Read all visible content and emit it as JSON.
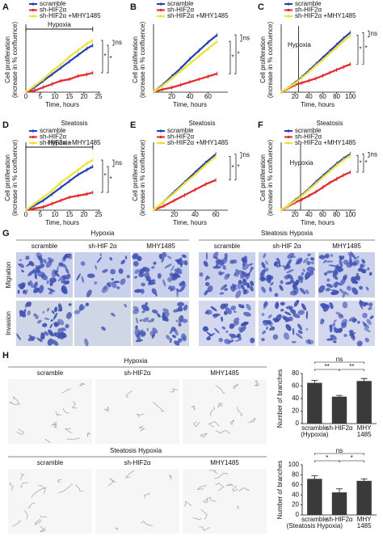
{
  "chart_data": [
    {
      "type": "line",
      "panel": "A",
      "annotation": {
        "text": "Hypoxia"
      },
      "xlabel": "Time, hours",
      "ylabel": [
        "Cell proliferation",
        "(increase in % confluence)"
      ],
      "x": [
        0,
        3,
        6,
        9,
        12,
        15,
        18,
        21,
        23
      ],
      "xlim": [
        0,
        25
      ],
      "xticks": [
        0,
        5,
        10,
        15,
        20,
        25
      ],
      "ylim": [
        0,
        40
      ],
      "series": [
        {
          "name": "scramble",
          "color": "#1f3fbf",
          "values": [
            0,
            3,
            7,
            11,
            15,
            19,
            23,
            27,
            29
          ]
        },
        {
          "name": "sh-HIF2α",
          "color": "#e8262a",
          "values": [
            0,
            1,
            3,
            5,
            7,
            8,
            10,
            11,
            12
          ]
        },
        {
          "name": "sh-HIF2α +MHY1485",
          "color": "#f2e22c",
          "values": [
            0,
            4,
            8,
            13,
            17,
            22,
            26,
            30,
            32
          ]
        }
      ],
      "significance": [
        "*",
        "*",
        "ns"
      ]
    },
    {
      "type": "line",
      "panel": "B",
      "xlabel": "Time, hours",
      "ylabel": [
        "Cell proliferation",
        "(increase in % confluence)"
      ],
      "x": [
        0,
        10,
        20,
        30,
        40,
        50,
        60,
        70
      ],
      "xlim": [
        0,
        80
      ],
      "xticks": [
        20,
        40,
        60
      ],
      "ylim": [
        0,
        70
      ],
      "series": [
        {
          "name": "scramble",
          "color": "#1f3fbf",
          "values": [
            0,
            8,
            17,
            26,
            36,
            45,
            54,
            62
          ]
        },
        {
          "name": "sh-HIF2α",
          "color": "#e8262a",
          "values": [
            0,
            3,
            5,
            8,
            11,
            14,
            17,
            20
          ]
        },
        {
          "name": "sh-HIF2α +MHY1485",
          "color": "#f2e22c",
          "values": [
            0,
            7,
            15,
            23,
            31,
            39,
            47,
            55
          ]
        }
      ],
      "significance": [
        "*",
        "*",
        "ns"
      ]
    },
    {
      "type": "line",
      "panel": "C",
      "annotation": {
        "text": "Hypoxia",
        "x": 25
      },
      "xlabel": "Time, hours",
      "ylabel": [
        "Cell proliferation",
        "(increase in % confluence)"
      ],
      "x": [
        0,
        10,
        20,
        30,
        40,
        50,
        60,
        70,
        80,
        90,
        100
      ],
      "xlim": [
        0,
        105
      ],
      "xticks": [
        20,
        40,
        60,
        80,
        100
      ],
      "ylim": [
        0,
        90
      ],
      "series": [
        {
          "name": "scramble",
          "color": "#1f3fbf",
          "values": [
            0,
            6,
            13,
            21,
            30,
            39,
            48,
            57,
            66,
            75,
            83
          ]
        },
        {
          "name": "sh-HIF2α",
          "color": "#e8262a",
          "values": [
            0,
            5,
            10,
            13,
            16,
            19,
            23,
            27,
            31,
            35,
            39
          ]
        },
        {
          "name": "sh-HIF2α +MHY1485",
          "color": "#f2e22c",
          "values": [
            0,
            6,
            12,
            20,
            28,
            37,
            45,
            54,
            62,
            71,
            79
          ]
        }
      ],
      "significance": [
        "*",
        "*",
        "ns"
      ]
    },
    {
      "type": "line",
      "panel": "D",
      "title": "Steatosis",
      "annotation": {
        "text": "Hypoxia"
      },
      "xlabel": "Time, hours",
      "ylabel": [
        "Cell proliferation",
        "(increase in % confluence)"
      ],
      "x": [
        0,
        3,
        6,
        9,
        12,
        15,
        18,
        21,
        23
      ],
      "xlim": [
        0,
        25
      ],
      "xticks": [
        0,
        5,
        10,
        15,
        20,
        25
      ],
      "ylim": [
        0,
        40
      ],
      "series": [
        {
          "name": "scramble",
          "color": "#1f3fbf",
          "values": [
            0,
            3,
            6,
            10,
            14,
            18,
            22,
            25,
            27
          ]
        },
        {
          "name": "sh-HIF2α",
          "color": "#e8262a",
          "values": [
            0,
            1,
            2,
            4,
            6,
            8,
            9,
            10,
            11
          ]
        },
        {
          "name": "sh-HIF2α +MHY1485",
          "color": "#f2e22c",
          "values": [
            0,
            4,
            8,
            12,
            17,
            21,
            25,
            29,
            31
          ]
        }
      ],
      "significance": [
        "*",
        "*",
        "ns"
      ]
    },
    {
      "type": "line",
      "panel": "E",
      "title": "Steatosis",
      "xlabel": "Time, hours",
      "ylabel": [
        "Cell proliferation",
        "(increase in % confluence)"
      ],
      "x": [
        0,
        10,
        20,
        30,
        40,
        50,
        60
      ],
      "xlim": [
        0,
        70
      ],
      "xticks": [
        20,
        40,
        60
      ],
      "ylim": [
        0,
        60
      ],
      "series": [
        {
          "name": "scramble",
          "color": "#1f3fbf",
          "values": [
            0,
            8,
            17,
            26,
            35,
            44,
            52
          ]
        },
        {
          "name": "sh-HIF2α",
          "color": "#e8262a",
          "values": [
            0,
            4,
            9,
            14,
            19,
            24,
            28
          ]
        },
        {
          "name": "sh-HIF2α +MHY1485",
          "color": "#f2e22c",
          "values": [
            0,
            8,
            16,
            25,
            33,
            42,
            50
          ]
        }
      ],
      "significance": [
        "*",
        "*",
        "ns"
      ]
    },
    {
      "type": "line",
      "panel": "F",
      "title": "Steatosis",
      "annotation": {
        "text": "Hypoxia",
        "x": 28
      },
      "xlabel": "Time, hours",
      "ylabel": [
        "Cell proliferation",
        "(increase in % confluence)"
      ],
      "x": [
        0,
        10,
        20,
        30,
        40,
        50,
        60,
        70,
        80,
        90,
        100
      ],
      "xlim": [
        0,
        105
      ],
      "xticks": [
        20,
        40,
        60,
        80,
        100
      ],
      "ylim": [
        0,
        85
      ],
      "series": [
        {
          "name": "scramble",
          "color": "#1f3fbf",
          "values": [
            0,
            6,
            13,
            20,
            28,
            37,
            45,
            53,
            61,
            68,
            74
          ]
        },
        {
          "name": "sh-HIF2α",
          "color": "#e8262a",
          "values": [
            0,
            5,
            10,
            14,
            19,
            24,
            30,
            36,
            41,
            46,
            50
          ]
        },
        {
          "name": "sh-HIF2α +MHY1485",
          "color": "#f2e22c",
          "values": [
            0,
            6,
            12,
            19,
            27,
            35,
            43,
            51,
            59,
            66,
            72
          ]
        }
      ],
      "significance": [
        "*",
        "*",
        "ns"
      ]
    },
    {
      "type": "bar",
      "ylabel": "Number of branches",
      "color": "#3a3a3a",
      "categories": [
        [
          "scramble",
          "(Hypoxia)"
        ],
        [
          "sh-HIF2α"
        ],
        [
          "MHY",
          "1485"
        ]
      ],
      "values": [
        65,
        43,
        68
      ],
      "errors": [
        4,
        2,
        4
      ],
      "ylim": [
        0,
        80
      ],
      "yticks": [
        0,
        20,
        40,
        60,
        80
      ],
      "significance": [
        "ns",
        "**",
        "**"
      ]
    },
    {
      "type": "bar",
      "ylabel": "Number of branches",
      "color": "#3a3a3a",
      "categories": [
        [
          "scramble",
          "(Steatosis Hypoxia)"
        ],
        [
          "sh-HIF2α"
        ],
        [
          "MHY",
          "1485"
        ]
      ],
      "values": [
        72,
        45,
        68
      ],
      "errors": [
        6,
        7,
        4
      ],
      "ylim": [
        0,
        100
      ],
      "yticks": [
        0,
        20,
        40,
        60,
        80,
        100
      ],
      "significance": [
        "ns",
        "*",
        "*"
      ]
    }
  ],
  "panel_g": {
    "panel": "G",
    "groups": [
      "Hypoxia",
      "Steatosis Hypoxia"
    ],
    "columns": [
      "scramble",
      "sh-HIF 2α",
      "MHY1485"
    ],
    "rows": [
      "Migration",
      "Invasion"
    ]
  },
  "panel_h": {
    "panel": "H",
    "groups": [
      "Hypoxia",
      "Steatosis Hypoxia"
    ],
    "columns": [
      "scramble",
      "sh-HIF2α",
      "MHY1485"
    ]
  }
}
